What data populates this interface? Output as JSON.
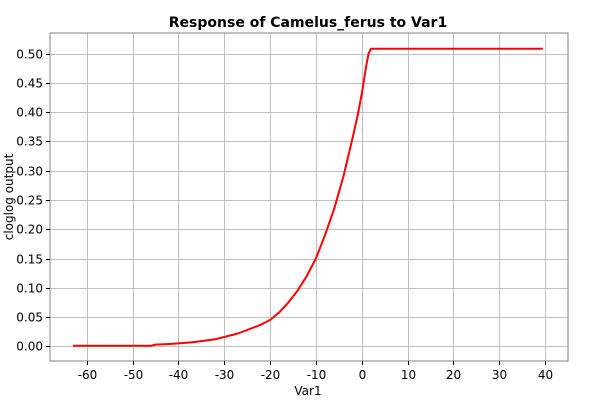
{
  "chart_data": {
    "type": "line",
    "title": "Response of Camelus_ferus to Var1",
    "xlabel": "Var1",
    "ylabel": "cloglog output",
    "xlim": [
      -68,
      45
    ],
    "ylim": [
      -0.025,
      0.535
    ],
    "xticks": [
      -60,
      -50,
      -40,
      -30,
      -20,
      -10,
      0,
      10,
      20,
      30,
      40
    ],
    "yticks": [
      0.0,
      0.05,
      0.1,
      0.15,
      0.2,
      0.25,
      0.3,
      0.35,
      0.4,
      0.45,
      0.5
    ],
    "grid": true,
    "series_color": "#ff0000",
    "series": [
      {
        "x": [
          -63,
          -55,
          -46,
          -45,
          -42,
          -40,
          -37,
          -35,
          -32,
          -30,
          -27,
          -25,
          -22,
          -20,
          -18,
          -16,
          -14,
          -12,
          -10,
          -8,
          -6,
          -4,
          -2,
          -1,
          0,
          1,
          1.5,
          2,
          3,
          39.5
        ],
        "y": [
          0.001,
          0.001,
          0.001,
          0.003,
          0.004,
          0.005,
          0.007,
          0.009,
          0.012,
          0.016,
          0.022,
          0.028,
          0.037,
          0.045,
          0.058,
          0.075,
          0.095,
          0.12,
          0.15,
          0.19,
          0.235,
          0.29,
          0.355,
          0.39,
          0.43,
          0.48,
          0.5,
          0.508,
          0.508,
          0.508
        ]
      }
    ]
  }
}
